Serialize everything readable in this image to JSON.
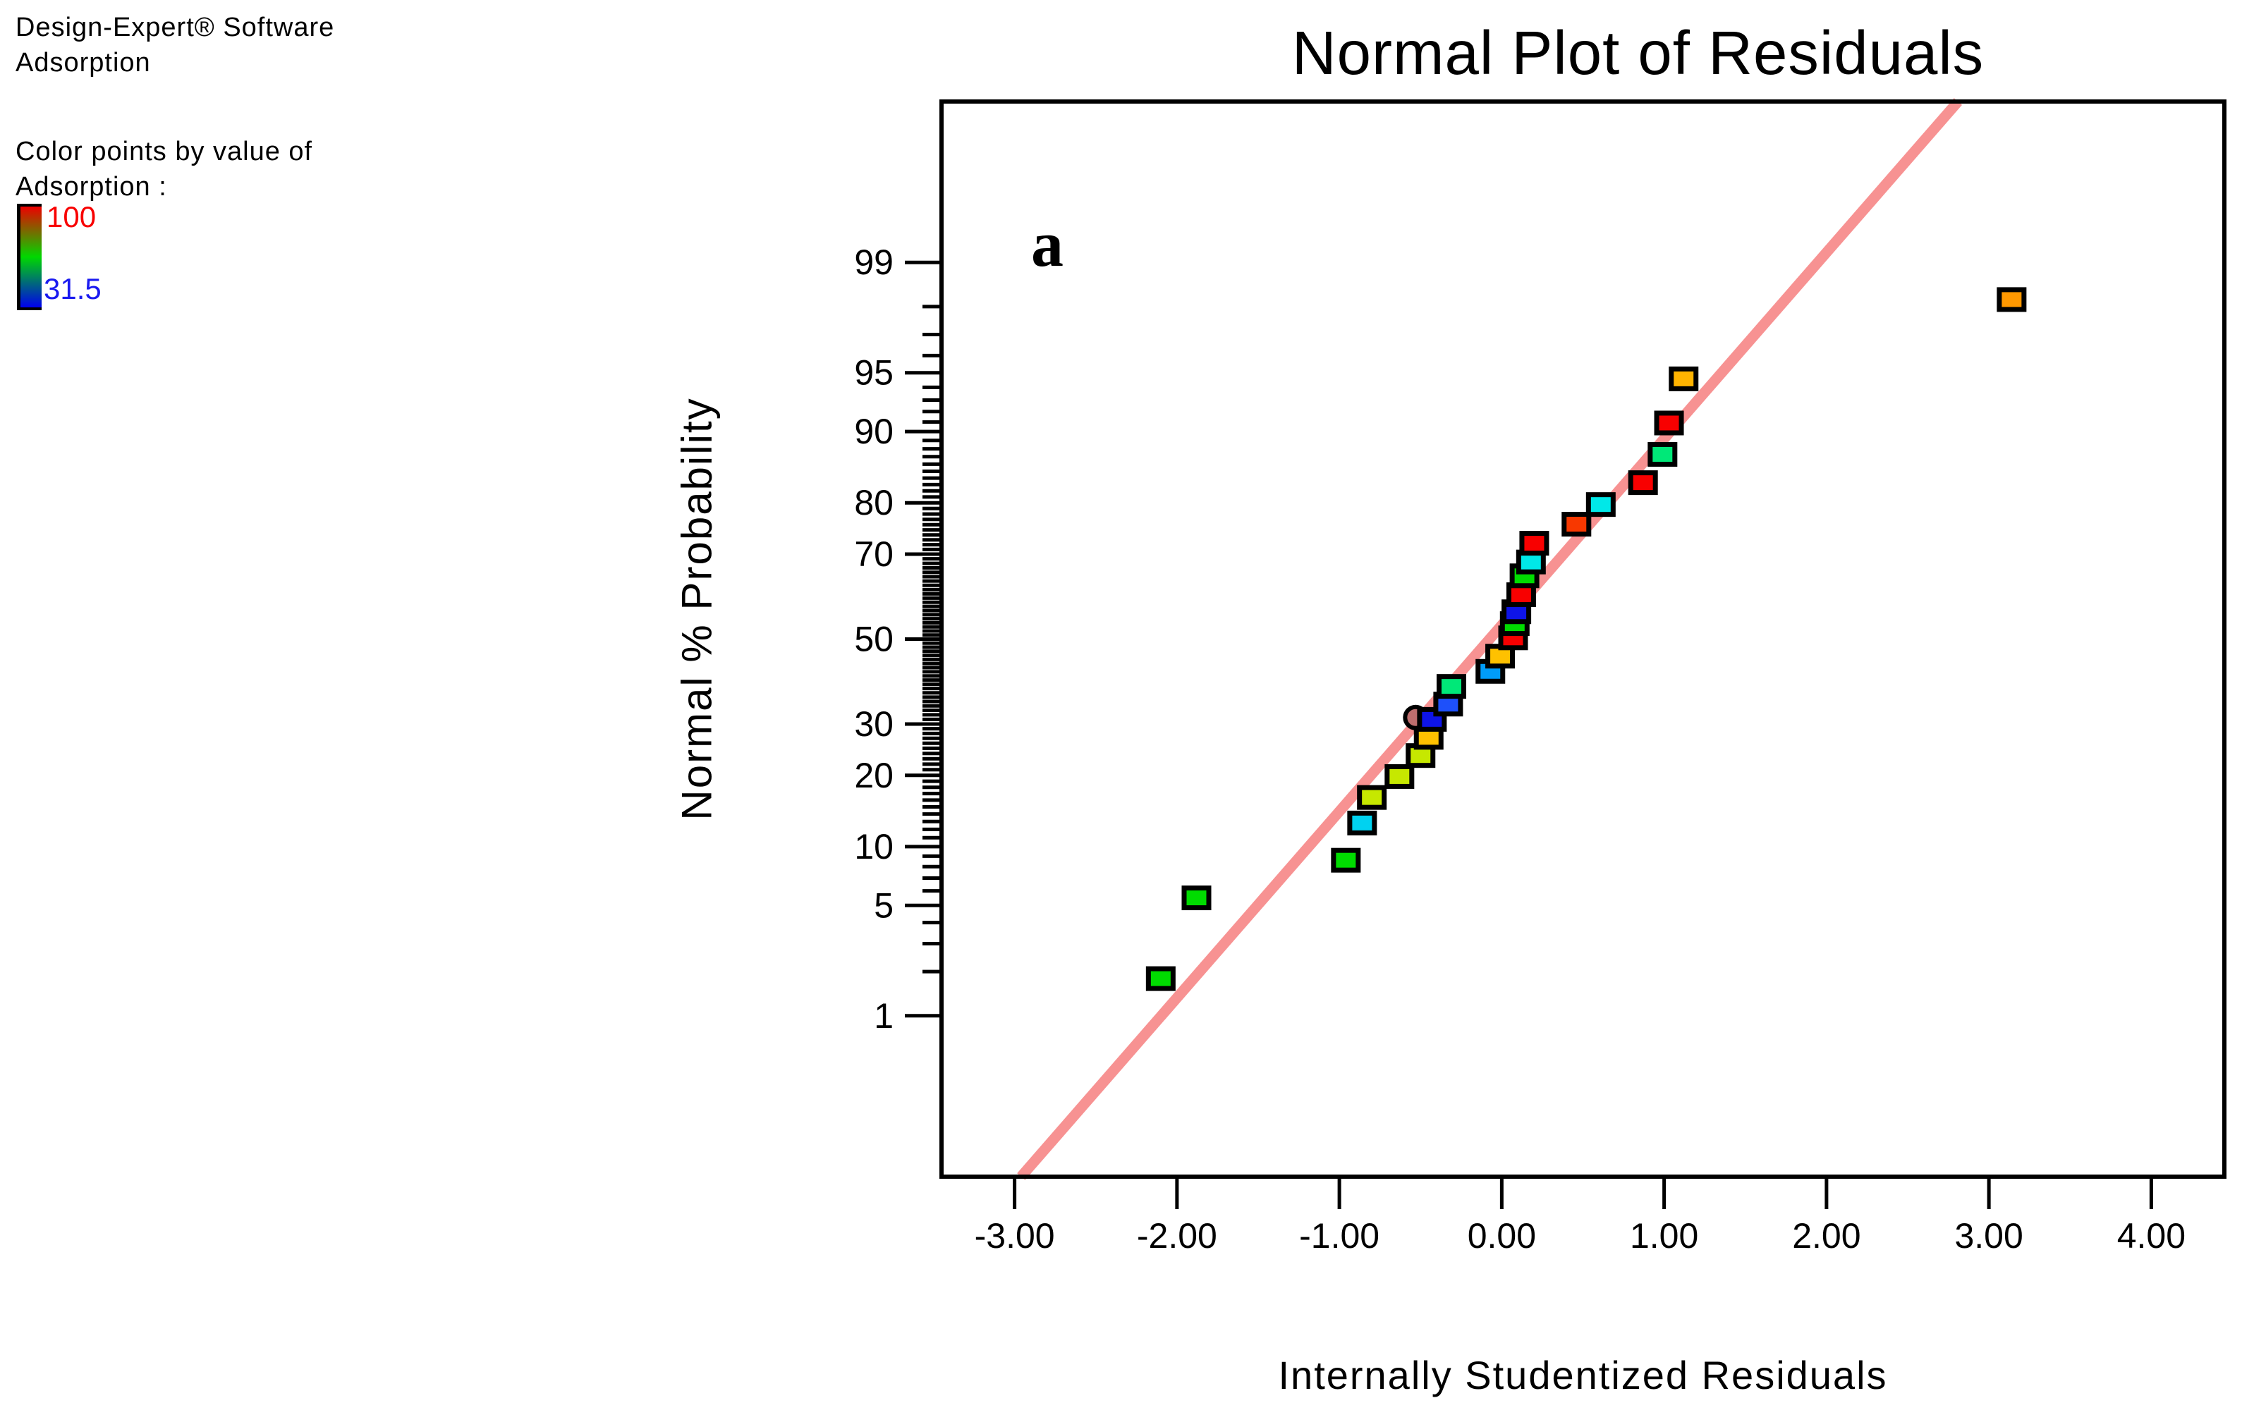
{
  "app": {
    "line1": "Design-Expert® Software",
    "line2": "Adsorption"
  },
  "legend": {
    "caption_line1": "Color points by value of",
    "caption_line2": "Adsorption :",
    "max_label": "100",
    "min_label": "31.5",
    "max_label_color": "#f80000",
    "min_label_color": "#1a1af0",
    "gradient_colors": [
      "#ee0000",
      "#00d800",
      "#0000ee"
    ]
  },
  "chart_data": {
    "type": "scatter",
    "title": "Normal Plot of Residuals",
    "panel_label": "a",
    "xlabel": "Internally Studentized Residuals",
    "ylabel": "Normal % Probability",
    "x_scale": "linear",
    "y_scale": "normal-probability",
    "xlim": [
      -3.45,
      4.45
    ],
    "zlim": [
      -3.32,
      3.32
    ],
    "x_ticks": [
      -3,
      -2,
      -1,
      0,
      1,
      2,
      3,
      4
    ],
    "x_tick_labels": [
      "-3.00",
      "-2.00",
      "-1.00",
      "0.00",
      "1.00",
      "2.00",
      "3.00",
      "4.00"
    ],
    "y_major_ticks": [
      1,
      5,
      10,
      20,
      30,
      50,
      70,
      80,
      90,
      95,
      99
    ],
    "y_minor_tick_ranges": [
      [
        2,
        4
      ],
      [
        6,
        9
      ],
      [
        11,
        19
      ],
      [
        21,
        29
      ],
      [
        31,
        49
      ],
      [
        51,
        69
      ],
      [
        71,
        79
      ],
      [
        81,
        89
      ],
      [
        91,
        94
      ],
      [
        96,
        98
      ]
    ],
    "grid": false,
    "frame_color": "#000000",
    "fit_line": {
      "x1": -2.96,
      "z1": -3.32,
      "x2": 2.81,
      "z2": 3.32,
      "color": "#f79292",
      "width": 15
    },
    "points_note": "x = internally studentized residual, p = normal % probability, c = point color coded by Adsorption value (red=100 high ... blue=31.5 low)",
    "points": [
      {
        "x": -2.1,
        "p": 1.8,
        "c": "#00dc00",
        "shape": "square"
      },
      {
        "x": -1.88,
        "p": 5.5,
        "c": "#00dc00",
        "shape": "square"
      },
      {
        "x": -0.96,
        "p": 8.6,
        "c": "#00dc00",
        "shape": "square"
      },
      {
        "x": -0.86,
        "p": 12.8,
        "c": "#00d2f0",
        "shape": "square"
      },
      {
        "x": -0.8,
        "p": 16.4,
        "c": "#c6e800",
        "shape": "square"
      },
      {
        "x": -0.63,
        "p": 19.8,
        "c": "#c6e800",
        "shape": "square"
      },
      {
        "x": -0.5,
        "p": 23.6,
        "c": "#c6e800",
        "shape": "square"
      },
      {
        "x": -0.45,
        "p": 27.2,
        "c": "#ffc100",
        "shape": "square"
      },
      {
        "x": -0.53,
        "p": 31.4,
        "c": "#be6e6e",
        "shape": "circle"
      },
      {
        "x": -0.43,
        "p": 31.0,
        "c": "#0e14e8",
        "shape": "square"
      },
      {
        "x": -0.33,
        "p": 34.4,
        "c": "#1e50fa",
        "shape": "square"
      },
      {
        "x": -0.31,
        "p": 38.5,
        "c": "#00e878",
        "shape": "square"
      },
      {
        "x": -0.07,
        "p": 42.1,
        "c": "#009cf8",
        "shape": "square"
      },
      {
        "x": -0.01,
        "p": 45.8,
        "c": "#ffc100",
        "shape": "square"
      },
      {
        "x": 0.07,
        "p": 50.3,
        "c": "#f80000",
        "shape": "square"
      },
      {
        "x": 0.08,
        "p": 53.8,
        "c": "#00dc00",
        "shape": "square"
      },
      {
        "x": 0.09,
        "p": 56.7,
        "c": "#0e14e8",
        "shape": "square"
      },
      {
        "x": 0.12,
        "p": 60.8,
        "c": "#f80000",
        "shape": "square"
      },
      {
        "x": 0.14,
        "p": 65.2,
        "c": "#00dc00",
        "shape": "square"
      },
      {
        "x": 0.18,
        "p": 68.3,
        "c": "#00e8e8",
        "shape": "square"
      },
      {
        "x": 0.2,
        "p": 72.3,
        "c": "#f80000",
        "shape": "square"
      },
      {
        "x": 0.46,
        "p": 76.1,
        "c": "#f83800",
        "shape": "square"
      },
      {
        "x": 0.61,
        "p": 79.7,
        "c": "#00e8e8",
        "shape": "square"
      },
      {
        "x": 0.87,
        "p": 83.3,
        "c": "#f80000",
        "shape": "square"
      },
      {
        "x": 0.99,
        "p": 87.3,
        "c": "#00e878",
        "shape": "square"
      },
      {
        "x": 1.03,
        "p": 90.9,
        "c": "#f80000",
        "shape": "square"
      },
      {
        "x": 1.12,
        "p": 94.6,
        "c": "#ffb400",
        "shape": "square"
      },
      {
        "x": 3.14,
        "p": 98.2,
        "c": "#ff9800",
        "shape": "square"
      }
    ]
  }
}
